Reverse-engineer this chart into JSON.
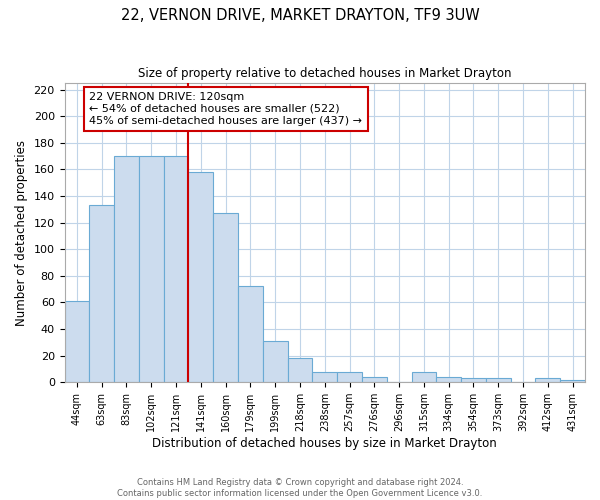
{
  "title": "22, VERNON DRIVE, MARKET DRAYTON, TF9 3UW",
  "subtitle": "Size of property relative to detached houses in Market Drayton",
  "xlabel": "Distribution of detached houses by size in Market Drayton",
  "ylabel": "Number of detached properties",
  "footer_line1": "Contains HM Land Registry data © Crown copyright and database right 2024.",
  "footer_line2": "Contains public sector information licensed under the Open Government Licence v3.0.",
  "bin_labels": [
    "44sqm",
    "63sqm",
    "83sqm",
    "102sqm",
    "121sqm",
    "141sqm",
    "160sqm",
    "179sqm",
    "199sqm",
    "218sqm",
    "238sqm",
    "257sqm",
    "276sqm",
    "296sqm",
    "315sqm",
    "334sqm",
    "354sqm",
    "373sqm",
    "392sqm",
    "412sqm",
    "431sqm"
  ],
  "bar_heights": [
    61,
    133,
    170,
    170,
    170,
    158,
    127,
    72,
    31,
    18,
    8,
    8,
    4,
    0,
    8,
    4,
    3,
    3,
    0,
    3,
    2
  ],
  "bar_color": "#ccdcee",
  "bar_edge_color": "#6aaad4",
  "vline_x_index": 4,
  "vline_color": "#cc0000",
  "annotation_title": "22 VERNON DRIVE: 120sqm",
  "annotation_line1": "← 54% of detached houses are smaller (522)",
  "annotation_line2": "45% of semi-detached houses are larger (437) →",
  "annotation_box_color": "#ffffff",
  "annotation_box_edge": "#cc0000",
  "ylim": [
    0,
    225
  ],
  "yticks": [
    0,
    20,
    40,
    60,
    80,
    100,
    120,
    140,
    160,
    180,
    200,
    220
  ],
  "background_color": "#ffffff",
  "grid_color": "#c0d4e8"
}
